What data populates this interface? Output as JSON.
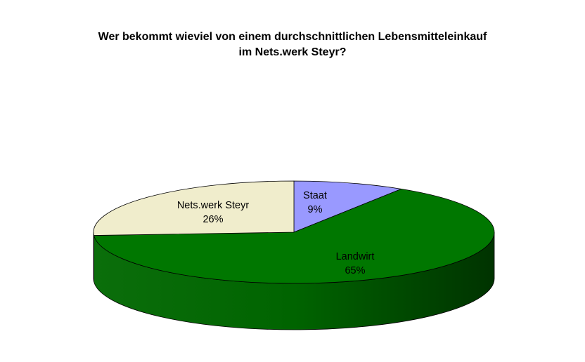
{
  "chart_data": {
    "type": "pie",
    "title": "Wer bekommt wieviel von einem durchschnittlichen Lebensmitteleinkauf im Nets.werk Steyr?",
    "title_lines": [
      "Wer bekommt wieviel von einem durchschnittlichen Lebensmitteleinkauf",
      "im Nets.werk Steyr?"
    ],
    "style": "3d",
    "slices": [
      {
        "label": "Staat",
        "value": 9,
        "value_label": "9%",
        "color": "#9999ff"
      },
      {
        "label": "Landwirt",
        "value": 65,
        "value_label": "65%",
        "color": "#007700"
      },
      {
        "label": "Nets.werk Steyr",
        "value": 26,
        "value_label": "26%",
        "color": "#f0edcc"
      }
    ],
    "legend": "none"
  }
}
